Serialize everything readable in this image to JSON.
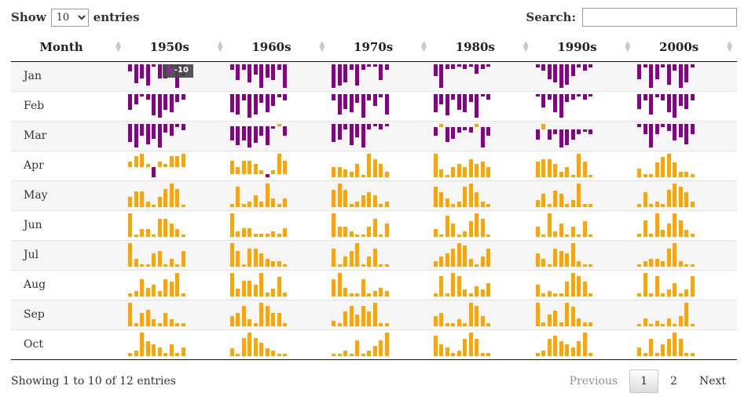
{
  "controls": {
    "show_label": "Show",
    "entries_label": "entries",
    "page_length": "10",
    "search_label": "Search:",
    "search_value": ""
  },
  "colors": {
    "positive_bar": "#ffa400",
    "negative_bar": "#870087",
    "header_border": "#111111",
    "row_stripe": "#f6f6f6",
    "tooltip_bg": "#484848"
  },
  "tooltip": {
    "bullet": "●",
    "value": "-10"
  },
  "table": {
    "columns": [
      "Month",
      "1950s",
      "1960s",
      "1970s",
      "1980s",
      "1990s",
      "2000s"
    ],
    "rows": [
      {
        "month": "Jan",
        "sparklines": [
          [
            -3,
            -8,
            -6,
            -9,
            -1,
            -6,
            -6,
            -1,
            -10,
            -5
          ],
          [
            -2,
            -6,
            -2,
            -7,
            -4,
            -9,
            -5,
            -6,
            -2,
            -9
          ],
          [
            -9,
            -8,
            -7,
            -2,
            -8,
            -2,
            -1,
            -1,
            -6,
            -2
          ],
          [
            -5,
            -10,
            -2,
            -2,
            -1,
            -2,
            -1,
            -4,
            -2,
            -1
          ],
          [
            -1,
            -2,
            -5,
            -6,
            -8,
            -7,
            -4,
            -1,
            -2,
            -1
          ],
          [
            -5,
            -1,
            -8,
            -5,
            -1,
            -7,
            -2,
            -8,
            -6,
            -1
          ]
        ]
      },
      {
        "month": "Feb",
        "sparklines": [
          [
            -6,
            -4,
            -1,
            -2,
            -8,
            -9,
            -6,
            -7,
            -3,
            -2
          ],
          [
            -6,
            -7,
            -2,
            -8,
            -7,
            -3,
            -6,
            -4,
            -1,
            -2
          ],
          [
            -2,
            -7,
            -5,
            -6,
            -3,
            -8,
            -2,
            -4,
            -1,
            -7
          ],
          [
            -7,
            -4,
            -8,
            -2,
            -6,
            -7,
            -3,
            -9,
            -1,
            -2
          ],
          [
            -1,
            -5,
            -2,
            -7,
            -9,
            -3,
            -2,
            -1,
            -2,
            -1
          ],
          [
            -5,
            -2,
            -7,
            -1,
            -2,
            -6,
            -8,
            -4,
            -5,
            -2
          ]
        ]
      },
      {
        "month": "Mar",
        "sparklines": [
          [
            -6,
            -8,
            -4,
            -7,
            -5,
            -8,
            -3,
            -4,
            -1,
            -2
          ],
          [
            -6,
            -8,
            -6,
            -9,
            -7,
            -4,
            -8,
            -1,
            1,
            -4
          ],
          [
            -7,
            -6,
            -2,
            -8,
            -5,
            -9,
            -2,
            -1,
            -2,
            -1
          ],
          [
            -3,
            1,
            -5,
            -4,
            -2,
            -1,
            -2,
            1,
            -7,
            -3
          ],
          [
            -4,
            2,
            -4,
            -2,
            -7,
            -6,
            -4,
            -2,
            -1,
            -2
          ],
          [
            -1,
            -3,
            -7,
            -3,
            -1,
            -2,
            -5,
            -4,
            -6,
            -3
          ]
        ]
      },
      {
        "month": "Apr",
        "sparklines": [
          [
            2,
            4,
            5,
            1,
            -4,
            2,
            1,
            4,
            4,
            5
          ],
          [
            4,
            2,
            4,
            4,
            3,
            1,
            -1,
            1,
            6,
            4
          ],
          [
            4,
            4,
            3,
            2,
            5,
            1,
            9,
            7,
            5,
            2
          ],
          [
            9,
            3,
            1,
            4,
            5,
            4,
            7,
            5,
            6,
            4
          ],
          [
            6,
            7,
            7,
            5,
            2,
            4,
            1,
            9,
            6,
            1
          ],
          [
            3,
            1,
            1,
            5,
            7,
            8,
            5,
            2,
            2,
            1
          ]
        ]
      },
      {
        "month": "May",
        "sparklines": [
          [
            4,
            6,
            6,
            2,
            1,
            4,
            7,
            9,
            7,
            1
          ],
          [
            1,
            7,
            1,
            2,
            4,
            2,
            8,
            3,
            1,
            3
          ],
          [
            6,
            8,
            6,
            1,
            2,
            4,
            5,
            4,
            1,
            2
          ],
          [
            7,
            5,
            3,
            1,
            2,
            7,
            8,
            5,
            2,
            1
          ],
          [
            2,
            4,
            1,
            5,
            4,
            1,
            2,
            7,
            1,
            1
          ],
          [
            1,
            5,
            1,
            2,
            1,
            6,
            8,
            7,
            5,
            2
          ]
        ]
      },
      {
        "month": "Jun",
        "sparklines": [
          [
            9,
            1,
            3,
            3,
            1,
            7,
            7,
            5,
            3,
            1
          ],
          [
            8,
            2,
            3,
            3,
            1,
            1,
            1,
            2,
            1,
            3
          ],
          [
            9,
            4,
            4,
            2,
            1,
            1,
            4,
            7,
            1,
            5
          ],
          [
            3,
            1,
            8,
            5,
            1,
            2,
            6,
            9,
            7,
            1
          ],
          [
            4,
            1,
            9,
            2,
            5,
            1,
            4,
            1,
            6,
            1
          ],
          [
            1,
            5,
            1,
            7,
            2,
            4,
            7,
            5,
            2,
            1
          ]
        ]
      },
      {
        "month": "Jul",
        "sparklines": [
          [
            9,
            3,
            1,
            1,
            5,
            6,
            1,
            3,
            1,
            6
          ],
          [
            9,
            6,
            1,
            7,
            7,
            5,
            3,
            2,
            2,
            1
          ],
          [
            7,
            1,
            4,
            6,
            9,
            1,
            4,
            7,
            1,
            1
          ],
          [
            2,
            4,
            5,
            7,
            9,
            8,
            3,
            1,
            4,
            7
          ],
          [
            5,
            3,
            1,
            7,
            6,
            5,
            9,
            2,
            1,
            1
          ],
          [
            1,
            2,
            3,
            3,
            2,
            7,
            9,
            2,
            1,
            1
          ]
        ]
      },
      {
        "month": "Aug",
        "sparklines": [
          [
            1,
            2,
            6,
            3,
            4,
            2,
            6,
            5,
            8,
            1
          ],
          [
            6,
            2,
            4,
            4,
            3,
            6,
            1,
            2,
            5,
            1
          ],
          [
            6,
            8,
            3,
            1,
            1,
            6,
            1,
            2,
            3,
            2
          ],
          [
            1,
            6,
            1,
            7,
            6,
            2,
            1,
            3,
            2,
            4
          ],
          [
            4,
            1,
            2,
            1,
            1,
            5,
            8,
            7,
            5,
            1
          ],
          [
            1,
            7,
            1,
            6,
            1,
            2,
            4,
            1,
            2,
            6
          ]
        ]
      },
      {
        "month": "Sep",
        "sparklines": [
          [
            7,
            1,
            4,
            5,
            2,
            1,
            4,
            2,
            1,
            1
          ],
          [
            3,
            4,
            6,
            2,
            1,
            7,
            6,
            4,
            4,
            1
          ],
          [
            2,
            1,
            5,
            7,
            4,
            7,
            5,
            8,
            1,
            1
          ],
          [
            3,
            4,
            1,
            1,
            2,
            1,
            7,
            6,
            3,
            1
          ],
          [
            6,
            1,
            3,
            4,
            1,
            6,
            5,
            2,
            1,
            1
          ],
          [
            1,
            3,
            1,
            2,
            1,
            3,
            1,
            4,
            9,
            1
          ]
        ]
      },
      {
        "month": "Oct",
        "sparklines": [
          [
            1,
            2,
            8,
            5,
            4,
            3,
            1,
            4,
            1,
            3
          ],
          [
            3,
            1,
            7,
            9,
            7,
            5,
            3,
            2,
            1,
            1
          ],
          [
            1,
            1,
            2,
            1,
            6,
            1,
            2,
            4,
            6,
            9
          ],
          [
            7,
            4,
            3,
            1,
            2,
            6,
            8,
            6,
            1,
            1
          ],
          [
            1,
            2,
            6,
            7,
            5,
            4,
            3,
            5,
            8,
            1
          ],
          [
            3,
            1,
            6,
            1,
            4,
            6,
            8,
            6,
            1,
            1
          ]
        ]
      }
    ]
  },
  "footer": {
    "info": "Showing 1 to 10 of 12 entries",
    "pagination": {
      "previous": "Previous",
      "pages": [
        "1",
        "2"
      ],
      "current": "1",
      "next": "Next"
    }
  }
}
